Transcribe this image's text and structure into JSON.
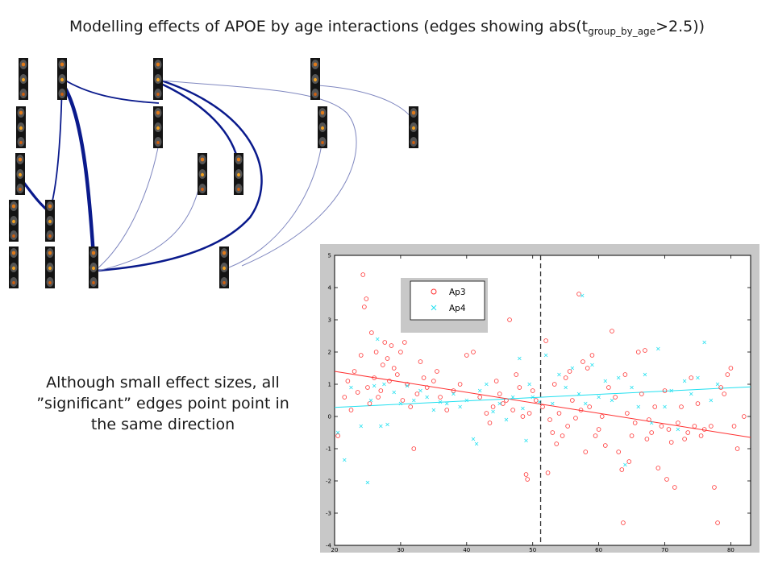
{
  "slide": {
    "title_main": "Modelling effects of APOE by age interactions (edges showing abs(t",
    "title_sub": "group_by_age",
    "title_tail": ">2.5))",
    "caption": "Although small effect sizes, all ”significant” edges point point in the same direction"
  },
  "network": {
    "node_icon": "brain-slice-stack-icon",
    "node_count": 16,
    "edge_color": "#0a1a8c",
    "edge_color_weak": "#8088c0"
  },
  "chart_data": {
    "type": "scatter",
    "title": "",
    "xlabel": "",
    "ylabel": "",
    "xlim": [
      20,
      83
    ],
    "ylim": [
      -4,
      5
    ],
    "xticks": [
      20,
      30,
      40,
      50,
      60,
      70,
      80
    ],
    "yticks": [
      -4,
      -3,
      -2,
      -1,
      0,
      1,
      2,
      3,
      4,
      5
    ],
    "grid": false,
    "legend_position": "top-left",
    "vertical_reference_line": 51.2,
    "series": [
      {
        "name": "Ap3",
        "marker": "circle",
        "color": "#ff3030",
        "fit_line": {
          "x": [
            20,
            83
          ],
          "y": [
            1.4,
            -0.65
          ]
        },
        "points": [
          [
            20.5,
            -0.6
          ],
          [
            21.5,
            0.6
          ],
          [
            22,
            1.1
          ],
          [
            22.5,
            0.2
          ],
          [
            23,
            1.4
          ],
          [
            23.5,
            0.75
          ],
          [
            24,
            1.9
          ],
          [
            24.3,
            4.4
          ],
          [
            24.5,
            3.4
          ],
          [
            24.8,
            3.65
          ],
          [
            25,
            0.9
          ],
          [
            25.3,
            0.4
          ],
          [
            25.6,
            2.6
          ],
          [
            26,
            1.2
          ],
          [
            26.3,
            2.0
          ],
          [
            26.6,
            0.6
          ],
          [
            27,
            0.8
          ],
          [
            27.3,
            1.6
          ],
          [
            27.6,
            2.3
          ],
          [
            28,
            1.8
          ],
          [
            28.3,
            1.1
          ],
          [
            28.6,
            2.2
          ],
          [
            29,
            1.5
          ],
          [
            29.5,
            1.3
          ],
          [
            30,
            2.0
          ],
          [
            30.3,
            0.5
          ],
          [
            30.6,
            2.3
          ],
          [
            31,
            1.0
          ],
          [
            31.5,
            0.3
          ],
          [
            32,
            -1.0
          ],
          [
            32.5,
            0.7
          ],
          [
            33,
            1.7
          ],
          [
            33.5,
            1.2
          ],
          [
            34,
            0.9
          ],
          [
            35,
            1.1
          ],
          [
            35.5,
            1.4
          ],
          [
            36,
            0.6
          ],
          [
            37,
            0.2
          ],
          [
            38,
            0.8
          ],
          [
            39,
            1.0
          ],
          [
            40,
            1.9
          ],
          [
            41,
            2.0
          ],
          [
            42,
            0.6
          ],
          [
            43,
            0.1
          ],
          [
            43.5,
            -0.2
          ],
          [
            44,
            0.3
          ],
          [
            44.5,
            1.1
          ],
          [
            45,
            0.7
          ],
          [
            45.5,
            0.4
          ],
          [
            46,
            0.5
          ],
          [
            46.5,
            3.0
          ],
          [
            47,
            0.2
          ],
          [
            47.5,
            1.3
          ],
          [
            48,
            0.9
          ],
          [
            48.5,
            0.0
          ],
          [
            49,
            -1.8
          ],
          [
            49.2,
            -1.95
          ],
          [
            49.5,
            0.1
          ],
          [
            50,
            0.8
          ],
          [
            50.5,
            0.5
          ],
          [
            51.5,
            0.3
          ],
          [
            52,
            2.35
          ],
          [
            52.3,
            -1.75
          ],
          [
            52.6,
            -0.1
          ],
          [
            53,
            -0.5
          ],
          [
            53.3,
            1.0
          ],
          [
            53.6,
            -0.85
          ],
          [
            54,
            0.1
          ],
          [
            54.5,
            -0.6
          ],
          [
            55,
            1.2
          ],
          [
            55.3,
            -0.3
          ],
          [
            55.6,
            1.4
          ],
          [
            56,
            0.5
          ],
          [
            56.5,
            -0.05
          ],
          [
            57,
            3.8
          ],
          [
            57.3,
            0.2
          ],
          [
            57.6,
            1.7
          ],
          [
            58,
            -1.1
          ],
          [
            58.3,
            1.5
          ],
          [
            58.6,
            0.3
          ],
          [
            59,
            1.9
          ],
          [
            59.5,
            -0.6
          ],
          [
            60,
            -0.4
          ],
          [
            60.5,
            0.0
          ],
          [
            61,
            -0.9
          ],
          [
            61.5,
            0.9
          ],
          [
            62,
            2.65
          ],
          [
            62.5,
            0.6
          ],
          [
            63,
            -1.1
          ],
          [
            63.5,
            -1.65
          ],
          [
            63.7,
            -3.3
          ],
          [
            64,
            1.3
          ],
          [
            64.3,
            0.1
          ],
          [
            64.6,
            -1.4
          ],
          [
            65,
            -0.6
          ],
          [
            65.5,
            -0.2
          ],
          [
            66,
            2.0
          ],
          [
            66.5,
            0.7
          ],
          [
            67,
            2.05
          ],
          [
            67.3,
            -0.7
          ],
          [
            67.6,
            -0.1
          ],
          [
            68,
            -0.5
          ],
          [
            68.5,
            0.3
          ],
          [
            69,
            -1.6
          ],
          [
            69.5,
            -0.3
          ],
          [
            70,
            0.8
          ],
          [
            70.3,
            -1.95
          ],
          [
            70.6,
            -0.4
          ],
          [
            71,
            -0.8
          ],
          [
            71.5,
            -2.2
          ],
          [
            72,
            -0.2
          ],
          [
            72.5,
            0.3
          ],
          [
            73,
            -0.7
          ],
          [
            73.5,
            -0.5
          ],
          [
            74,
            1.2
          ],
          [
            74.5,
            -0.3
          ],
          [
            75,
            0.4
          ],
          [
            75.5,
            -0.6
          ],
          [
            76,
            -0.4
          ],
          [
            77,
            -0.3
          ],
          [
            77.5,
            -2.2
          ],
          [
            78,
            -3.3
          ],
          [
            78.5,
            0.9
          ],
          [
            79,
            0.7
          ],
          [
            79.5,
            1.3
          ],
          [
            80,
            1.5
          ],
          [
            80.5,
            -0.3
          ],
          [
            81,
            -1.0
          ],
          [
            82,
            0.0
          ]
        ]
      },
      {
        "name": "Ap4",
        "marker": "x",
        "color": "#20e0f0",
        "fit_line": {
          "x": [
            20,
            83
          ],
          "y": [
            0.28,
            0.92
          ]
        },
        "points": [
          [
            20.5,
            -0.5
          ],
          [
            21.5,
            -1.35
          ],
          [
            22.5,
            0.9
          ],
          [
            24,
            -0.3
          ],
          [
            25,
            -2.05
          ],
          [
            25.5,
            0.5
          ],
          [
            26,
            0.95
          ],
          [
            26.5,
            2.4
          ],
          [
            27,
            -0.3
          ],
          [
            27.5,
            1.0
          ],
          [
            28,
            -0.25
          ],
          [
            29,
            0.75
          ],
          [
            30,
            0.4
          ],
          [
            31,
            0.95
          ],
          [
            32,
            0.5
          ],
          [
            33,
            0.8
          ],
          [
            34,
            0.6
          ],
          [
            35,
            0.2
          ],
          [
            36,
            0.45
          ],
          [
            37,
            0.4
          ],
          [
            38,
            0.7
          ],
          [
            39,
            0.3
          ],
          [
            40,
            0.5
          ],
          [
            41,
            -0.7
          ],
          [
            41.5,
            -0.85
          ],
          [
            42,
            0.8
          ],
          [
            43,
            1.0
          ],
          [
            44,
            0.15
          ],
          [
            45,
            0.4
          ],
          [
            46,
            -0.1
          ],
          [
            47,
            0.6
          ],
          [
            48,
            1.8
          ],
          [
            48.5,
            0.25
          ],
          [
            49,
            -0.75
          ],
          [
            49.5,
            1.0
          ],
          [
            50,
            0.6
          ],
          [
            51,
            0.45
          ],
          [
            52,
            1.9
          ],
          [
            53,
            0.4
          ],
          [
            54,
            1.3
          ],
          [
            55,
            0.9
          ],
          [
            56,
            1.5
          ],
          [
            57,
            0.7
          ],
          [
            57.5,
            3.75
          ],
          [
            58,
            0.4
          ],
          [
            59,
            1.6
          ],
          [
            60,
            0.6
          ],
          [
            61,
            1.1
          ],
          [
            62,
            0.5
          ],
          [
            63,
            1.2
          ],
          [
            64,
            -1.5
          ],
          [
            65,
            0.9
          ],
          [
            66,
            0.3
          ],
          [
            67,
            1.3
          ],
          [
            68,
            -0.2
          ],
          [
            69,
            2.1
          ],
          [
            70,
            0.3
          ],
          [
            71,
            0.8
          ],
          [
            72,
            -0.4
          ],
          [
            73,
            1.1
          ],
          [
            74,
            0.7
          ],
          [
            75,
            1.2
          ],
          [
            76,
            2.3
          ],
          [
            77,
            0.5
          ],
          [
            78,
            1.0
          ]
        ]
      }
    ]
  }
}
